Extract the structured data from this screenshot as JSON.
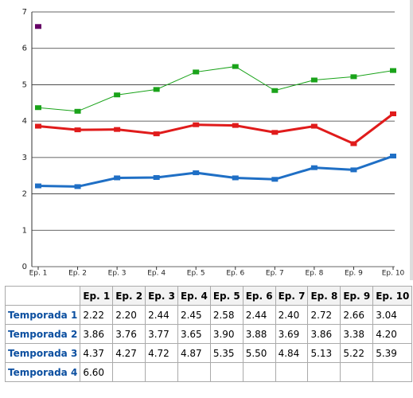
{
  "chart_data": {
    "type": "line",
    "categories": [
      "Ep. 1",
      "Ep. 2",
      "Ep. 3",
      "Ep. 4",
      "Ep. 5",
      "Ep. 6",
      "Ep. 7",
      "Ep. 8",
      "Ep. 9",
      "Ep. 10"
    ],
    "series": [
      {
        "name": "Temporada 1",
        "color": "#1f6fc5",
        "width": 3,
        "values": [
          2.22,
          2.2,
          2.44,
          2.45,
          2.58,
          2.44,
          2.4,
          2.72,
          2.66,
          3.04
        ],
        "value_labels": [
          "2.22",
          "2.20",
          "2.44",
          "2.45",
          "2.58",
          "2.44",
          "2.40",
          "2.72",
          "2.66",
          "3.04"
        ]
      },
      {
        "name": "Temporada 2",
        "color": "#e01b1b",
        "width": 3,
        "values": [
          3.86,
          3.76,
          3.77,
          3.65,
          3.9,
          3.88,
          3.69,
          3.86,
          3.38,
          4.2
        ],
        "value_labels": [
          "3.86",
          "3.76",
          "3.77",
          "3.65",
          "3.90",
          "3.88",
          "3.69",
          "3.86",
          "3.38",
          "4.20"
        ]
      },
      {
        "name": "Temporada 3",
        "color": "#1aa31a",
        "width": 1,
        "values": [
          4.37,
          4.27,
          4.72,
          4.87,
          5.35,
          5.5,
          4.84,
          5.13,
          5.22,
          5.39
        ],
        "value_labels": [
          "4.37",
          "4.27",
          "4.72",
          "4.87",
          "5.35",
          "5.50",
          "4.84",
          "5.13",
          "5.22",
          "5.39"
        ]
      },
      {
        "name": "Temporada 4",
        "color": "#660066",
        "width": 1,
        "values": [
          6.6,
          null,
          null,
          null,
          null,
          null,
          null,
          null,
          null,
          null
        ],
        "value_labels": [
          "6.60",
          null,
          null,
          null,
          null,
          null,
          null,
          null,
          null,
          null
        ]
      }
    ],
    "ylim": [
      0,
      7
    ],
    "yticks": [
      0,
      1,
      2,
      3,
      4,
      5,
      6,
      7
    ],
    "grid": true
  }
}
